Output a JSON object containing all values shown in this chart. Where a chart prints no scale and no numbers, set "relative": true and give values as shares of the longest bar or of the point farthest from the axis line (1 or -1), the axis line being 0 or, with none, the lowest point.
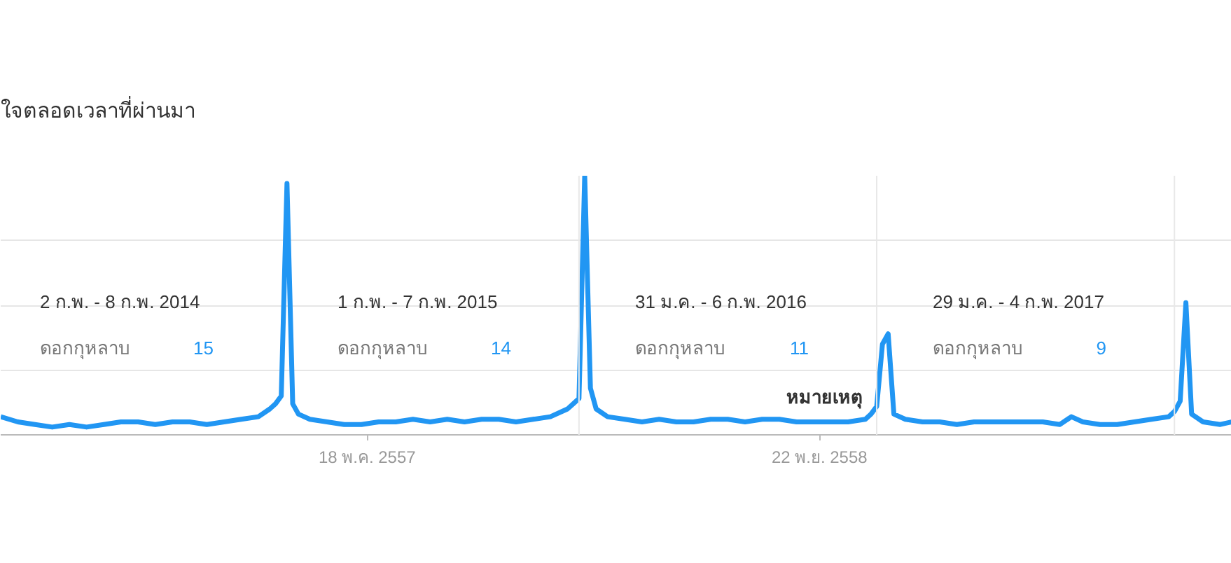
{
  "chart_data": {
    "type": "line",
    "title": "ใจตลอดเวลาที่ผ่านมา",
    "relative": true,
    "xlim": [
      "2013-02-24",
      "2017-04-09"
    ],
    "xticks": [
      {
        "value": "2014-05-18",
        "label": "18 พ.ค. 2557"
      },
      {
        "value": "2015-11-22",
        "label": "22 พ.ย. 2558"
      }
    ],
    "grid": "y",
    "marker": "none",
    "line_style": "solid",
    "series": [
      {
        "name": "ดอกกุหลาบ",
        "color": "#2196f3",
        "x": [
          "2013-02-24",
          "2013-03-17",
          "2013-04-07",
          "2013-04-28",
          "2013-05-19",
          "2013-06-09",
          "2013-06-30",
          "2013-07-21",
          "2013-08-11",
          "2013-09-01",
          "2013-09-22",
          "2013-10-13",
          "2013-11-03",
          "2013-11-24",
          "2013-12-15",
          "2014-01-05",
          "2014-01-19",
          "2014-01-26",
          "2014-02-02",
          "2014-02-09",
          "2014-02-16",
          "2014-02-23",
          "2014-03-09",
          "2014-03-30",
          "2014-04-20",
          "2014-05-11",
          "2014-06-01",
          "2014-06-22",
          "2014-07-13",
          "2014-08-03",
          "2014-08-24",
          "2014-09-14",
          "2014-10-05",
          "2014-10-26",
          "2014-11-16",
          "2014-12-07",
          "2014-12-28",
          "2015-01-18",
          "2015-01-25",
          "2015-02-01",
          "2015-02-08",
          "2015-02-15",
          "2015-02-22",
          "2015-03-08",
          "2015-03-29",
          "2015-04-19",
          "2015-05-10",
          "2015-05-31",
          "2015-06-21",
          "2015-07-12",
          "2015-08-02",
          "2015-08-23",
          "2015-09-13",
          "2015-10-04",
          "2015-10-25",
          "2015-11-15",
          "2015-12-06",
          "2015-12-27",
          "2016-01-17",
          "2016-01-24",
          "2016-01-31",
          "2016-02-07",
          "2016-02-14",
          "2016-02-21",
          "2016-03-06",
          "2016-03-27",
          "2016-04-17",
          "2016-05-08",
          "2016-05-29",
          "2016-06-19",
          "2016-07-10",
          "2016-07-31",
          "2016-08-21",
          "2016-09-11",
          "2016-09-25",
          "2016-10-09",
          "2016-10-30",
          "2016-11-20",
          "2016-12-11",
          "2017-01-01",
          "2017-01-22",
          "2017-01-29",
          "2017-02-05",
          "2017-02-12",
          "2017-02-19",
          "2017-03-05",
          "2017-03-26",
          "2017-04-09"
        ],
        "values": [
          0.07,
          0.05,
          0.04,
          0.03,
          0.04,
          0.03,
          0.04,
          0.05,
          0.05,
          0.04,
          0.05,
          0.05,
          0.04,
          0.05,
          0.06,
          0.07,
          0.1,
          0.12,
          0.15,
          0.97,
          0.12,
          0.08,
          0.06,
          0.05,
          0.04,
          0.04,
          0.05,
          0.05,
          0.06,
          0.05,
          0.06,
          0.05,
          0.06,
          0.06,
          0.05,
          0.06,
          0.07,
          0.1,
          0.12,
          0.14,
          1,
          0.18,
          0.1,
          0.07,
          0.06,
          0.05,
          0.06,
          0.05,
          0.05,
          0.06,
          0.06,
          0.05,
          0.06,
          0.06,
          0.05,
          0.05,
          0.05,
          0.05,
          0.06,
          0.08,
          0.11,
          0.35,
          0.39,
          0.08,
          0.06,
          0.05,
          0.05,
          0.04,
          0.05,
          0.05,
          0.05,
          0.05,
          0.05,
          0.04,
          0.07,
          0.05,
          0.04,
          0.04,
          0.05,
          0.06,
          0.07,
          0.09,
          0.13,
          0.51,
          0.08,
          0.05,
          0.04,
          0.05
        ]
      }
    ],
    "ref_lines": [
      {
        "axis": "x",
        "value": "2015-02-01",
        "color": "#e8e8e8"
      },
      {
        "axis": "x",
        "value": "2016-01-31",
        "color": "#e8e8e8"
      },
      {
        "axis": "x",
        "value": "2017-01-29",
        "color": "#e8e8e8"
      }
    ],
    "annotations": [
      "2 ก.พ. - 8 ก.พ. 2014",
      "15",
      "1 ก.พ. - 7 ก.พ. 2015",
      "14",
      "31 ม.ค. - 6 ก.พ. 2016",
      "11",
      "29 ม.ค. - 4 ก.พ. 2017",
      "9",
      "หมายเหตุ"
    ]
  }
}
